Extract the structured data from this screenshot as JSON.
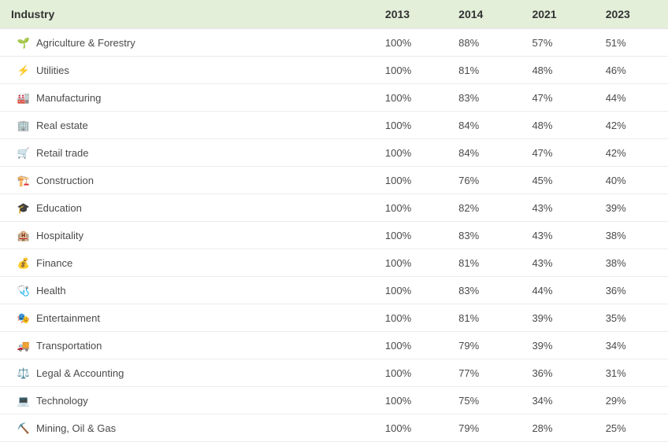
{
  "table": {
    "header_bg": "#e3efd9",
    "border_color": "#ececec",
    "header_text_color": "#333333",
    "cell_text_color": "#4a4a4a",
    "font_family": "Arial, Helvetica, sans-serif",
    "header_font_size": 14,
    "cell_font_size": 13,
    "columns": [
      {
        "key": "industry",
        "label": "Industry",
        "width_pct": 56
      },
      {
        "key": "y2013",
        "label": "2013",
        "width_pct": 11
      },
      {
        "key": "y2014",
        "label": "2014",
        "width_pct": 11
      },
      {
        "key": "y2021",
        "label": "2021",
        "width_pct": 11
      },
      {
        "key": "y2023",
        "label": "2023",
        "width_pct": 11
      }
    ],
    "rows": [
      {
        "icon": "🌱",
        "icon_name": "agriculture-icon",
        "label": "Agriculture & Forestry",
        "y2013": "100%",
        "y2014": "88%",
        "y2021": "57%",
        "y2023": "51%"
      },
      {
        "icon": "⚡",
        "icon_name": "utilities-icon",
        "label": "Utilities",
        "y2013": "100%",
        "y2014": "81%",
        "y2021": "48%",
        "y2023": "46%"
      },
      {
        "icon": "🏭",
        "icon_name": "manufacturing-icon",
        "label": "Manufacturing",
        "y2013": "100%",
        "y2014": "83%",
        "y2021": "47%",
        "y2023": "44%"
      },
      {
        "icon": "🏢",
        "icon_name": "real-estate-icon",
        "label": "Real estate",
        "y2013": "100%",
        "y2014": "84%",
        "y2021": "48%",
        "y2023": "42%"
      },
      {
        "icon": "🛒",
        "icon_name": "retail-icon",
        "label": "Retail trade",
        "y2013": "100%",
        "y2014": "84%",
        "y2021": "47%",
        "y2023": "42%"
      },
      {
        "icon": "🏗️",
        "icon_name": "construction-icon",
        "label": "Construction",
        "y2013": "100%",
        "y2014": "76%",
        "y2021": "45%",
        "y2023": "40%"
      },
      {
        "icon": "🎓",
        "icon_name": "education-icon",
        "label": "Education",
        "y2013": "100%",
        "y2014": "82%",
        "y2021": "43%",
        "y2023": "39%"
      },
      {
        "icon": "🏨",
        "icon_name": "hospitality-icon",
        "label": "Hospitality",
        "y2013": "100%",
        "y2014": "83%",
        "y2021": "43%",
        "y2023": "38%"
      },
      {
        "icon": "💰",
        "icon_name": "finance-icon",
        "label": "Finance",
        "y2013": "100%",
        "y2014": "81%",
        "y2021": "43%",
        "y2023": "38%"
      },
      {
        "icon": "🩺",
        "icon_name": "health-icon",
        "label": "Health",
        "y2013": "100%",
        "y2014": "83%",
        "y2021": "44%",
        "y2023": "36%"
      },
      {
        "icon": "🎭",
        "icon_name": "entertainment-icon",
        "label": "Entertainment",
        "y2013": "100%",
        "y2014": "81%",
        "y2021": "39%",
        "y2023": "35%"
      },
      {
        "icon": "🚚",
        "icon_name": "transportation-icon",
        "label": "Transportation",
        "y2013": "100%",
        "y2014": "79%",
        "y2021": "39%",
        "y2023": "34%"
      },
      {
        "icon": "⚖️",
        "icon_name": "legal-icon",
        "label": "Legal & Accounting",
        "y2013": "100%",
        "y2014": "77%",
        "y2021": "36%",
        "y2023": "31%"
      },
      {
        "icon": "💻",
        "icon_name": "technology-icon",
        "label": "Technology",
        "y2013": "100%",
        "y2014": "75%",
        "y2021": "34%",
        "y2023": "29%"
      },
      {
        "icon": "⛏️",
        "icon_name": "mining-icon",
        "label": "Mining, Oil & Gas",
        "y2013": "100%",
        "y2014": "79%",
        "y2021": "28%",
        "y2023": "25%"
      }
    ]
  }
}
